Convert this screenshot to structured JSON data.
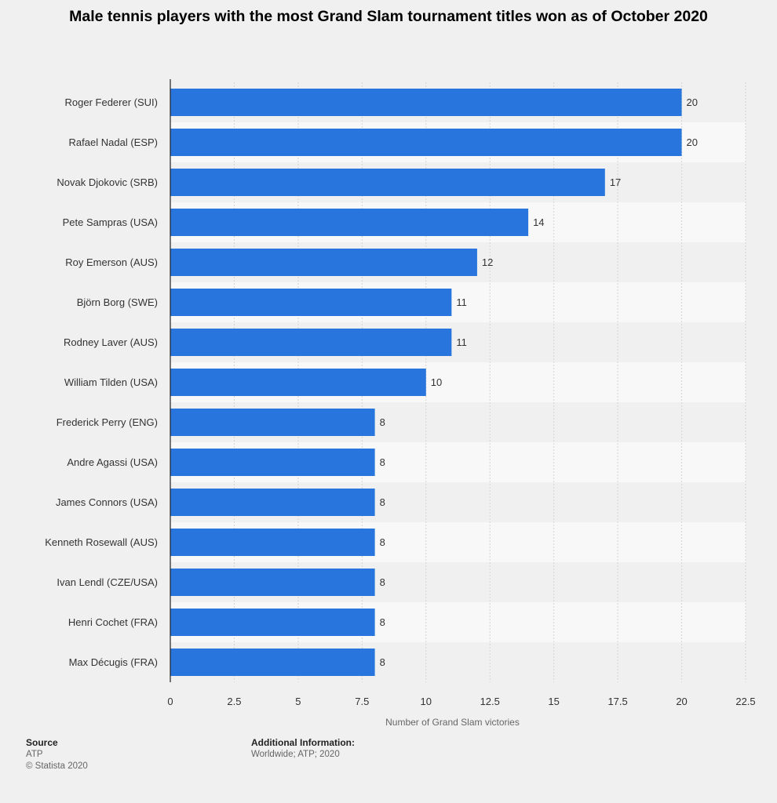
{
  "chart_data": {
    "type": "bar",
    "orientation": "horizontal",
    "title": "Male tennis players with the most Grand Slam tournament titles won as of October 2020",
    "xlabel": "Number of Grand Slam victories",
    "ylabel": "",
    "xlim": [
      0,
      22.5
    ],
    "xticks": [
      "0",
      "2.5",
      "5",
      "7.5",
      "10",
      "12.5",
      "15",
      "17.5",
      "20",
      "22.5"
    ],
    "categories": [
      "Roger Federer (SUI)",
      "Rafael Nadal (ESP)",
      "Novak Djokovic (SRB)",
      "Pete Sampras (USA)",
      "Roy Emerson (AUS)",
      "Björn Borg (SWE)",
      "Rodney Laver (AUS)",
      "William Tilden (USA)",
      "Frederick Perry (ENG)",
      "Andre Agassi (USA)",
      "James Connors (USA)",
      "Kenneth Rosewall (AUS)",
      "Ivan Lendl (CZE/USA)",
      "Henri Cochet (FRA)",
      "Max Décugis (FRA)"
    ],
    "values": [
      20,
      20,
      17,
      14,
      12,
      11,
      11,
      10,
      8,
      8,
      8,
      8,
      8,
      8,
      8
    ],
    "data_labels": [
      "20",
      "20",
      "17",
      "14",
      "12",
      "11",
      "11",
      "10",
      "8",
      "8",
      "8",
      "8",
      "8",
      "8",
      "8"
    ],
    "bar_color": "#2876dd",
    "grid": true,
    "legend": "none"
  },
  "footer": {
    "source_heading": "Source",
    "source_value": "ATP",
    "copyright": "© Statista 2020",
    "additional_heading": "Additional Information:",
    "additional_value": "Worldwide; ATP; 2020"
  }
}
